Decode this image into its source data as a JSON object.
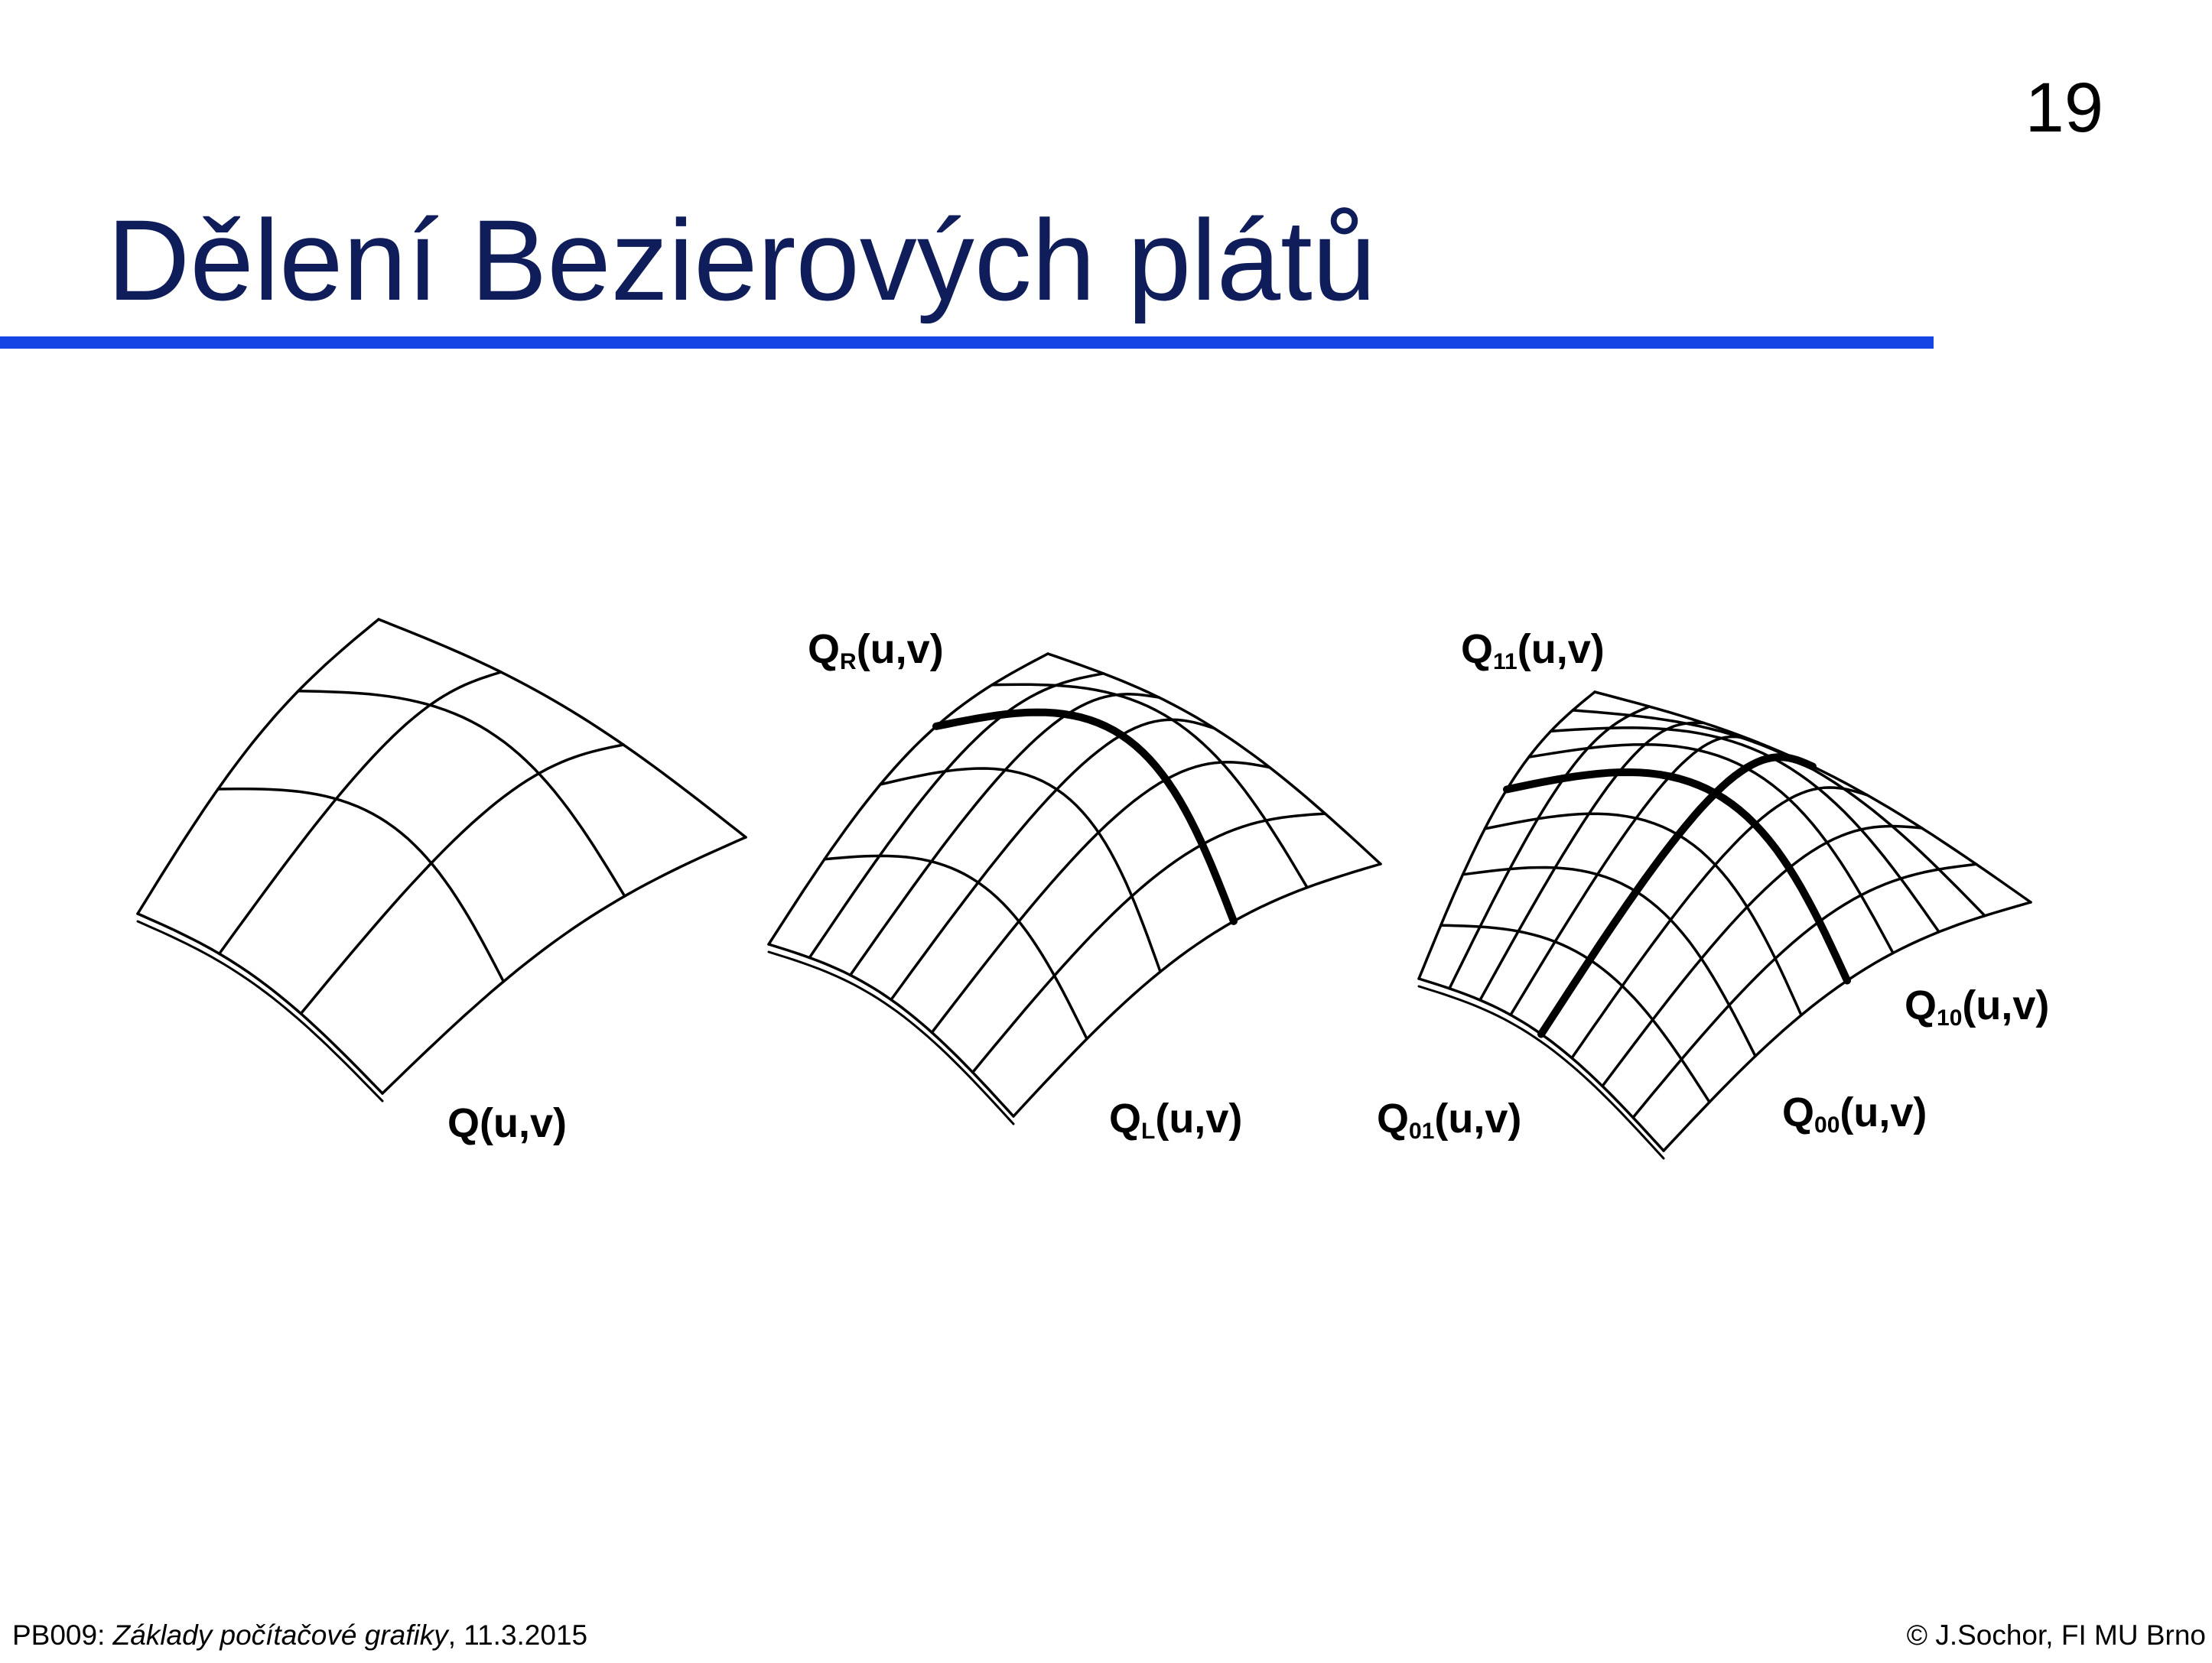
{
  "slide": {
    "number": "19",
    "title": "Dělení Bezierových plátů"
  },
  "figure": {
    "labels": {
      "q": "Q(u,v)",
      "qr_main": "Q",
      "qr_sub": "R",
      "qr_args": "(u,v)",
      "ql_main": "Q",
      "ql_sub": "L",
      "ql_args": "(u,v)",
      "q11_main": "Q",
      "q11_sub": "11",
      "q11_args": "(u,v)",
      "q10_main": "Q",
      "q10_sub": "10",
      "q10_args": "(u,v)",
      "q01_main": "Q",
      "q01_sub": "01",
      "q01_args": "(u,v)",
      "q00_main": "Q",
      "q00_sub": "00",
      "q00_args": "(u,v)"
    }
  },
  "footer": {
    "course_code": "PB009",
    "separator": ": ",
    "course_title": "Základy počítačové grafiky",
    "date": ", 11.3.2015",
    "copyright": "© J.Sochor, FI MU Brno"
  }
}
